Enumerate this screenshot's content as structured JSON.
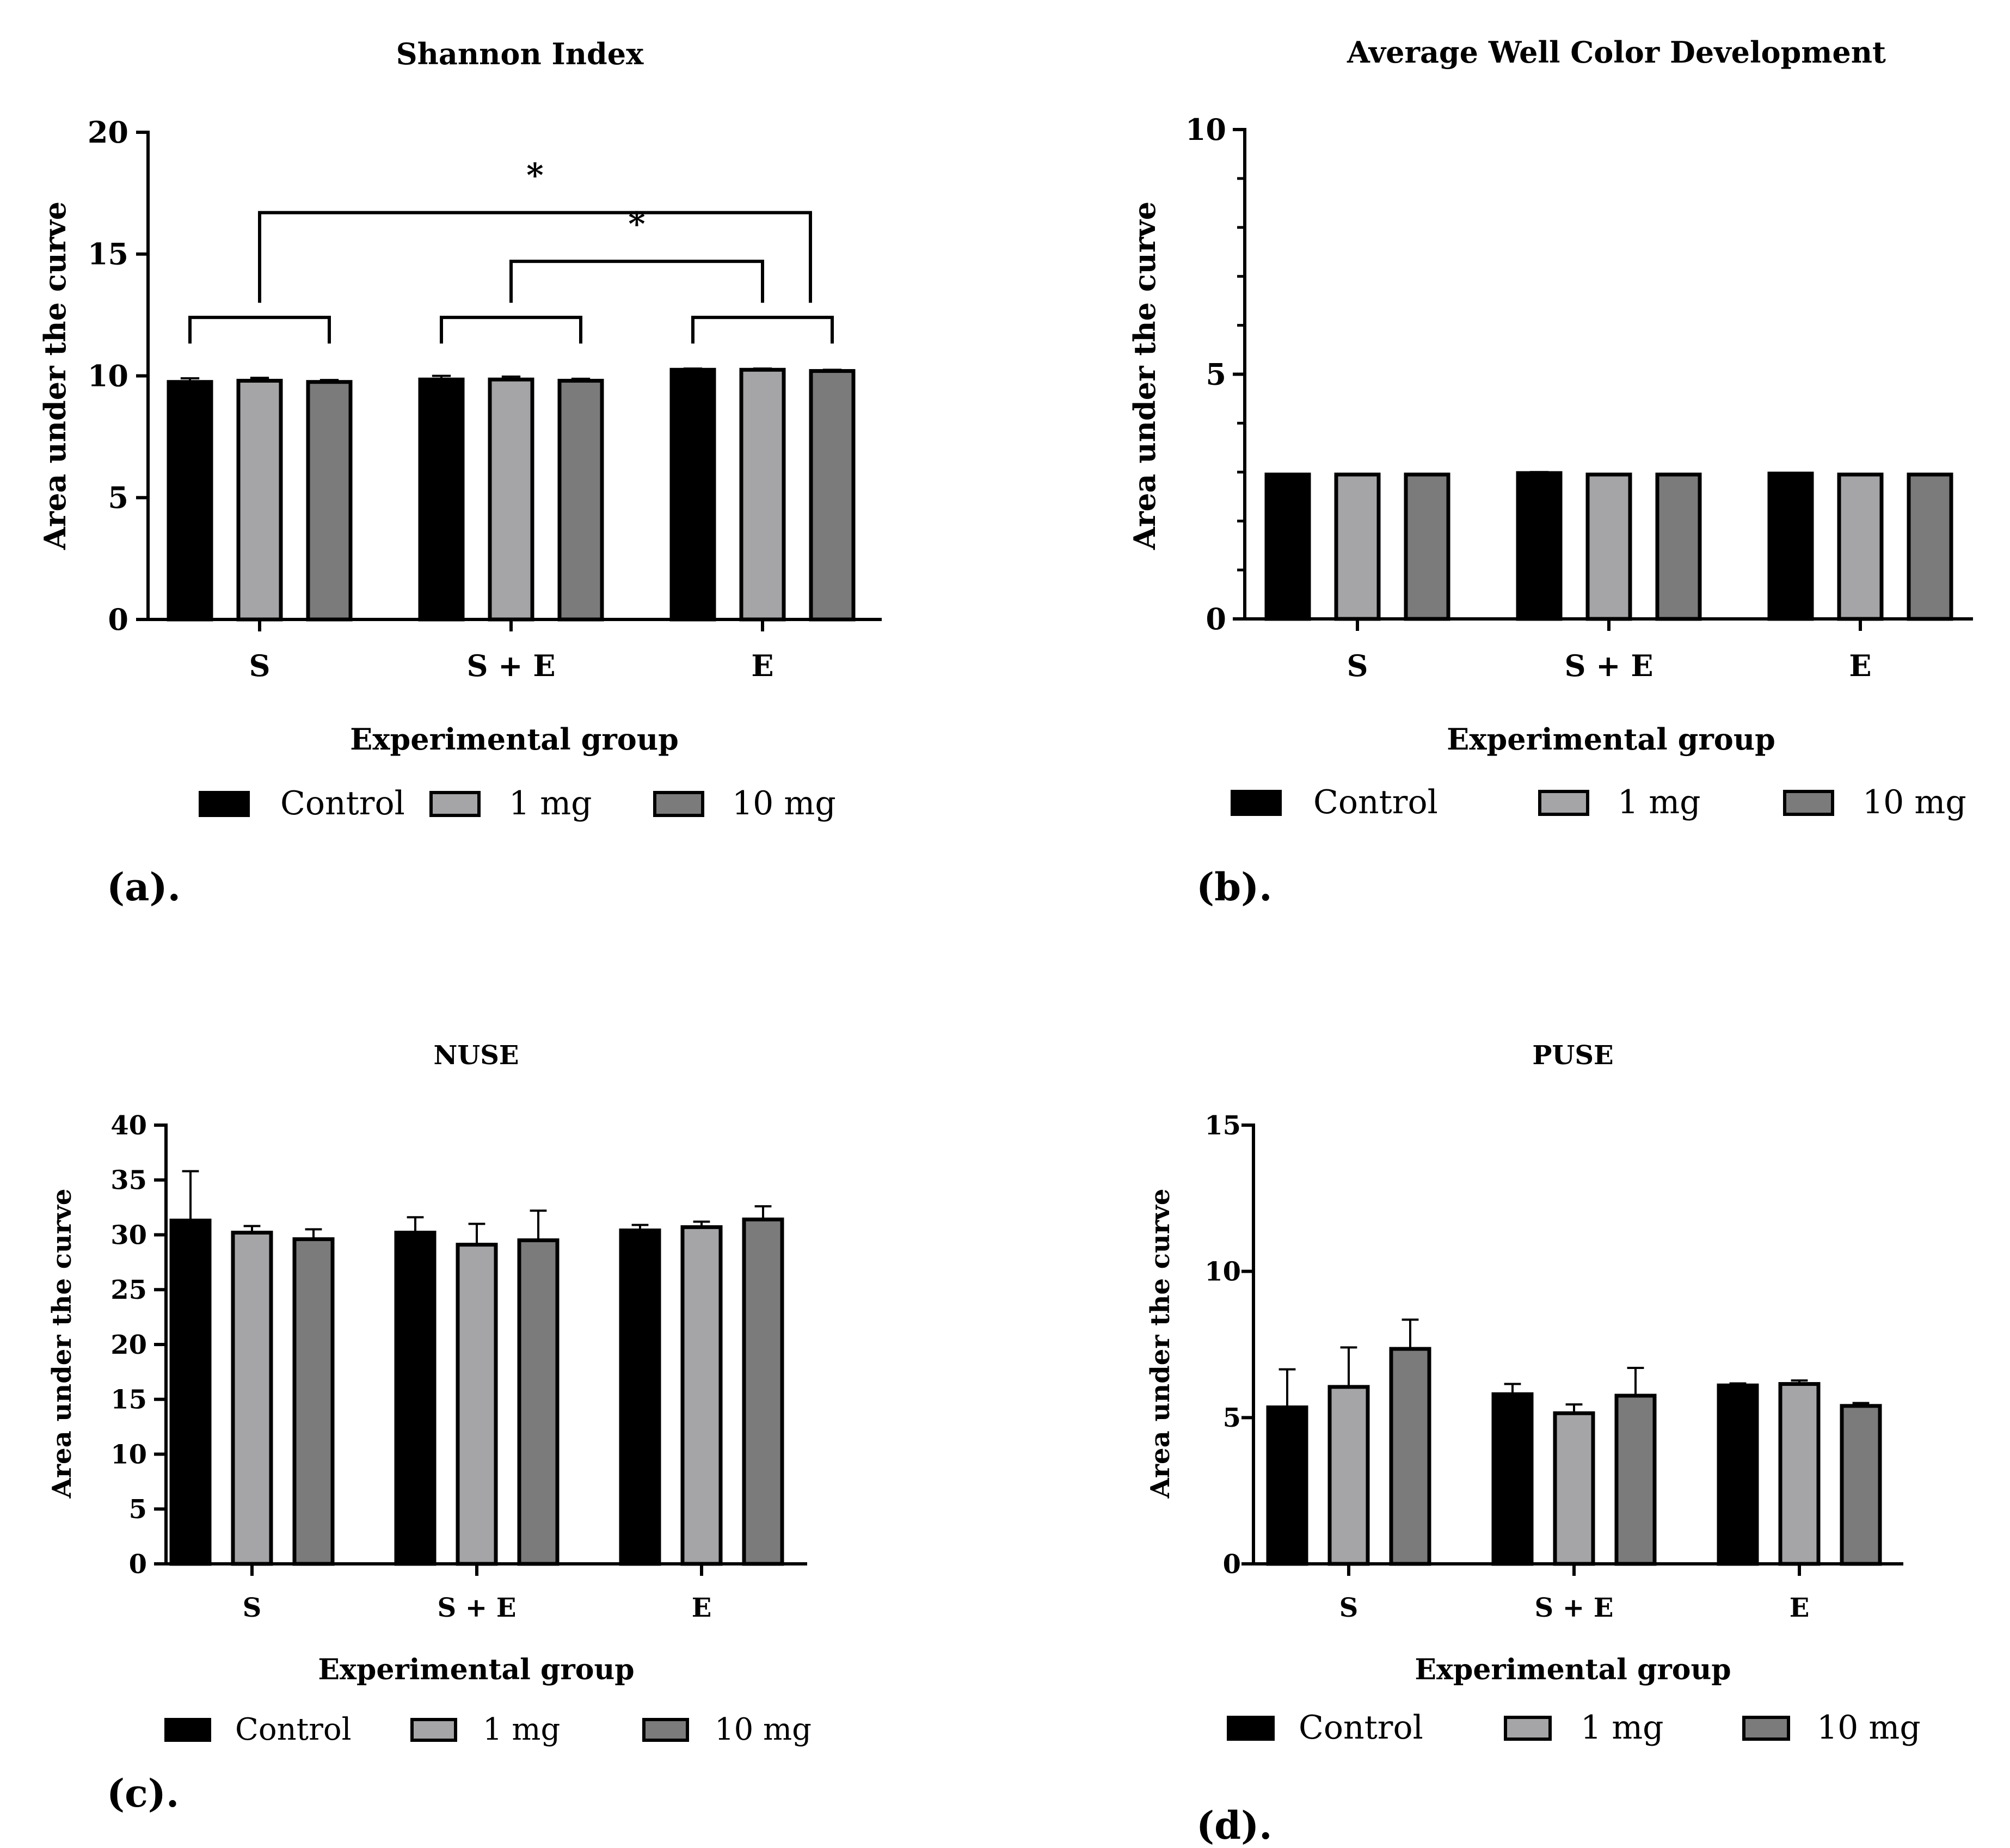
{
  "colors": {
    "control": "#000000",
    "mg1": "#a5a5a8",
    "mg10": "#7b7b7b",
    "outline": "#000000",
    "axis": "#000000"
  },
  "panel_labels": [
    "(a).",
    "(b).",
    "(c).",
    "(d)."
  ],
  "chart_data": [
    {
      "type": "bar",
      "title": "Shannon Index",
      "ylabel": "Area under the curve",
      "xlabel": "Experimental group",
      "categories": [
        "S",
        "S + E",
        "E"
      ],
      "ylim": [
        0,
        20
      ],
      "yticks": [
        0,
        5,
        10,
        15,
        20
      ],
      "yticklabels": [
        "0",
        "5",
        "10",
        "15",
        "20"
      ],
      "minor_ticks": false,
      "legend_position": "bottom",
      "series": [
        {
          "name": "Control",
          "values": [
            9.75,
            9.85,
            10.25
          ],
          "errors": [
            0.15,
            0.15,
            0.05
          ]
        },
        {
          "name": "1 mg",
          "values": [
            9.8,
            9.85,
            10.25
          ],
          "errors": [
            0.12,
            0.12,
            0.05
          ]
        },
        {
          "name": "10 mg",
          "values": [
            9.75,
            9.8,
            10.2
          ],
          "errors": [
            0.08,
            0.08,
            0.05
          ]
        }
      ],
      "brackets": [
        {
          "kind": "within",
          "group": 0,
          "y": 12.4
        },
        {
          "kind": "within",
          "group": 1,
          "y": 12.4
        },
        {
          "kind": "within",
          "group": 2,
          "y": 12.4
        },
        {
          "kind": "between",
          "from_group": 0,
          "to_group": 2,
          "from_end": "center",
          "to_end": "right",
          "y": 16.7,
          "drop_to": 13.0,
          "label": "*"
        },
        {
          "kind": "between",
          "from_group": 1,
          "to_group": 2,
          "from_end": "center",
          "to_end": "center",
          "y": 14.7,
          "drop_to": 13.0,
          "label": "*"
        }
      ]
    },
    {
      "type": "bar",
      "title": "Average Well Color Development",
      "ylabel": "Area under the curve",
      "xlabel": "Experimental group",
      "categories": [
        "S",
        "S + E",
        "E"
      ],
      "ylim": [
        0,
        10
      ],
      "yticks": [
        0,
        5,
        10
      ],
      "yticklabels": [
        "0",
        "5",
        "10"
      ],
      "minor_ticks": true,
      "legend_position": "bottom",
      "series": [
        {
          "name": "Control",
          "values": [
            2.95,
            2.98,
            2.97
          ],
          "errors": [
            0,
            0.02,
            0
          ]
        },
        {
          "name": "1 mg",
          "values": [
            2.95,
            2.95,
            2.95
          ],
          "errors": [
            0,
            0,
            0
          ]
        },
        {
          "name": "10 mg",
          "values": [
            2.95,
            2.95,
            2.95
          ],
          "errors": [
            0,
            0,
            0
          ]
        }
      ],
      "brackets": []
    },
    {
      "type": "bar",
      "title": "NUSE",
      "ylabel": "Area under the curve",
      "xlabel": "Experimental group",
      "categories": [
        "S",
        "S + E",
        "E"
      ],
      "ylim": [
        0,
        40
      ],
      "yticks": [
        0,
        5,
        10,
        15,
        20,
        25,
        30,
        35,
        40
      ],
      "yticklabels": [
        "0",
        "5",
        "10",
        "15",
        "20",
        "25",
        "30",
        "35",
        "40"
      ],
      "minor_ticks": false,
      "legend_position": "bottom",
      "series": [
        {
          "name": "Control",
          "values": [
            31.3,
            30.2,
            30.4
          ],
          "errors": [
            4.5,
            1.4,
            0.5
          ]
        },
        {
          "name": "1 mg",
          "values": [
            30.2,
            29.1,
            30.7
          ],
          "errors": [
            0.6,
            1.9,
            0.5
          ]
        },
        {
          "name": "10 mg",
          "values": [
            29.6,
            29.5,
            31.4
          ],
          "errors": [
            0.9,
            2.7,
            1.2
          ]
        }
      ],
      "brackets": []
    },
    {
      "type": "bar",
      "title": "PUSE",
      "ylabel": "Area under the curve",
      "xlabel": "Experimental group",
      "categories": [
        "S",
        "S + E",
        "E"
      ],
      "ylim": [
        0,
        15
      ],
      "yticks": [
        0,
        5,
        10,
        15
      ],
      "yticklabels": [
        "0",
        "5",
        "10",
        "15"
      ],
      "minor_ticks": false,
      "legend_position": "bottom",
      "series": [
        {
          "name": "Control",
          "values": [
            5.35,
            5.8,
            6.1
          ],
          "errors": [
            1.3,
            0.35,
            0.07
          ]
        },
        {
          "name": "1 mg",
          "values": [
            6.05,
            5.15,
            6.15
          ],
          "errors": [
            1.35,
            0.3,
            0.12
          ]
        },
        {
          "name": "10 mg",
          "values": [
            7.35,
            5.75,
            5.4
          ],
          "errors": [
            1.0,
            0.95,
            0.1
          ]
        }
      ],
      "brackets": []
    }
  ]
}
